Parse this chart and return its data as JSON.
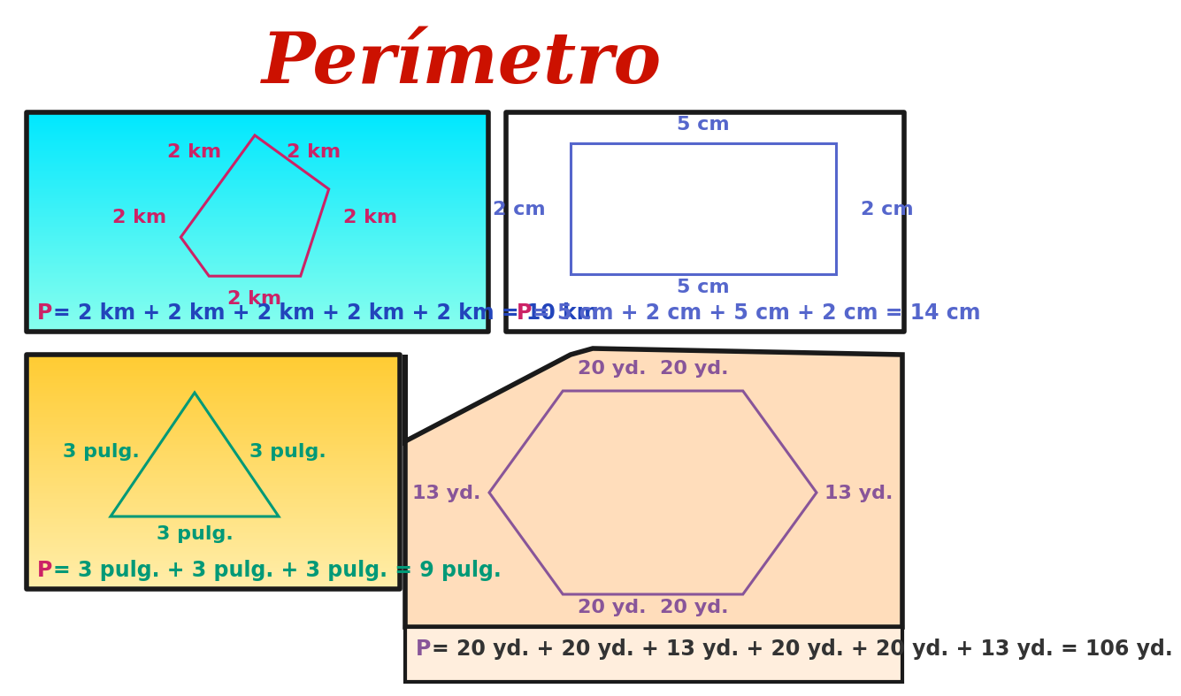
{
  "title": "Perímetro",
  "title_color": "#cc1100",
  "title_fontsize": 58,
  "bg_color": "#ffffff",
  "panel1": {
    "bg_colors": [
      "#00e8ff",
      "#88ffee"
    ],
    "border_color": "#1a1a1a",
    "shape_color": "#cc2266",
    "label_color": "#cc2266",
    "formula_p_color": "#cc2266",
    "formula_rest": "= 2 km + 2 km + 2 km + 2 km + 2 km = 10 km",
    "formula_rest_color": "#2244bb"
  },
  "panel2": {
    "bg_color": "#ffffcc",
    "border_color": "#1a1a1a",
    "shape_color": "#5566cc",
    "label_color": "#5566cc",
    "formula_p_color": "#cc2266",
    "formula_rest": "= 5 cm + 2 cm + 5 cm + 2 cm = 14 cm",
    "formula_rest_color": "#5566cc"
  },
  "panel3": {
    "bg_colors": [
      "#ffcc33",
      "#ffeeaa"
    ],
    "border_color": "#1a1a1a",
    "shape_color": "#009977",
    "label_color": "#009977",
    "formula_p_color": "#cc2266",
    "formula_rest": "= 3 pulg. + 3 pulg. + 3 pulg. = 9 pulg.",
    "formula_rest_color": "#009977"
  },
  "panel4": {
    "bg_color": "#ffddbb",
    "border_color": "#1a1a1a",
    "shape_color": "#885599",
    "label_color": "#885599",
    "formula_p_color": "#885599",
    "formula_rest": "= 20 yd. + 20 yd. + 13 yd. + 20 yd. + 20 yd. + 13 yd. = 106 yd.",
    "formula_rest_color": "#333333"
  }
}
